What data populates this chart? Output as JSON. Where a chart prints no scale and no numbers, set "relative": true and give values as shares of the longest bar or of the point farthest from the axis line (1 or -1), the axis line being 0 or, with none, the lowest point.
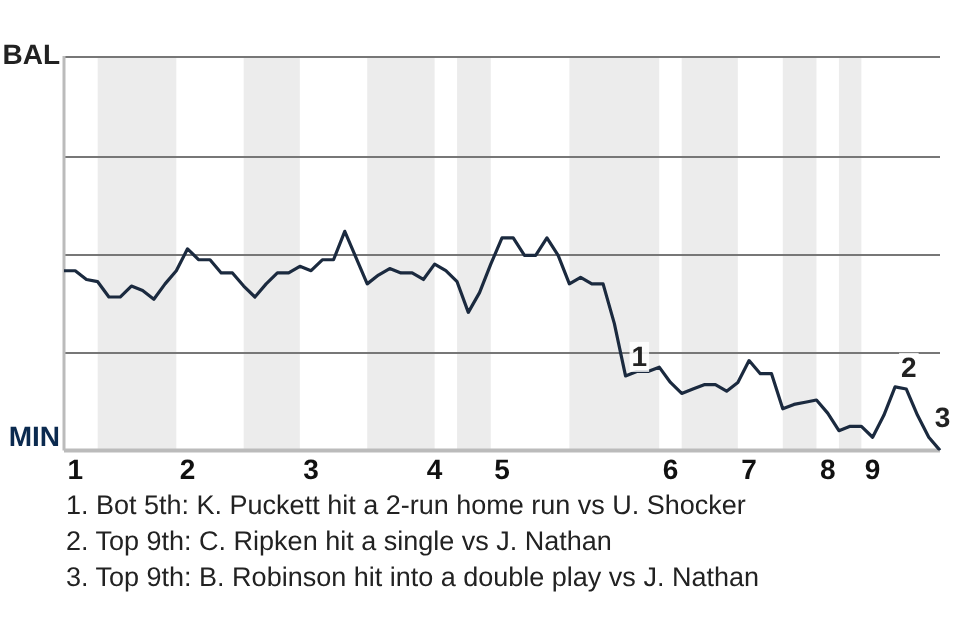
{
  "chart_data": {
    "type": "line",
    "relative": true,
    "categories": [
      null,
      "1",
      null,
      null,
      null,
      null,
      null,
      null,
      null,
      null,
      null,
      "2",
      null,
      null,
      null,
      null,
      null,
      null,
      null,
      null,
      null,
      null,
      "3",
      null,
      null,
      null,
      null,
      null,
      null,
      null,
      null,
      null,
      null,
      "4",
      null,
      null,
      null,
      null,
      null,
      "5",
      null,
      null,
      null,
      null,
      null,
      null,
      null,
      null,
      null,
      null,
      null,
      null,
      null,
      null,
      "6",
      null,
      null,
      null,
      null,
      null,
      null,
      "7",
      null,
      null,
      null,
      null,
      null,
      null,
      "8",
      null,
      null,
      null,
      "9",
      null,
      null,
      null,
      null,
      null,
      null
    ],
    "series": [
      {
        "color": "#1b2a3f",
        "values": [
          0.82,
          0.82,
          0.78,
          0.77,
          0.7,
          0.7,
          0.75,
          0.73,
          0.69,
          0.76,
          0.82,
          0.92,
          0.87,
          0.87,
          0.81,
          0.81,
          0.75,
          0.7,
          0.76,
          0.81,
          0.81,
          0.84,
          0.82,
          0.87,
          0.87,
          1,
          0.88,
          0.76,
          0.8,
          0.83,
          0.81,
          0.81,
          0.78,
          0.85,
          0.82,
          0.77,
          0.63,
          0.72,
          0.85,
          0.97,
          0.97,
          0.89,
          0.89,
          0.97,
          0.89,
          0.76,
          0.79,
          0.76,
          0.76,
          0.58,
          0.34,
          0.36,
          0.36,
          0.38,
          0.31,
          0.26,
          0.28,
          0.3,
          0.3,
          0.27,
          0.31,
          0.41,
          0.35,
          0.35,
          0.19,
          0.21,
          0.22,
          0.23,
          0.17,
          0.09,
          0.11,
          0.11,
          0.06,
          0.16,
          0.29,
          0.28,
          0.16,
          0.06,
          0
        ]
      }
    ],
    "legend": false,
    "marker": "none",
    "line_style": "solid",
    "ref_lines": [
      {
        "axis": "y",
        "value": 0.45,
        "color": "#777777"
      },
      {
        "axis": "y",
        "value": 0.9,
        "color": "#777777"
      },
      {
        "axis": "y",
        "value": 1.34,
        "color": "#777777"
      }
    ],
    "annotations": [
      {
        "text": "1",
        "y": 0.34
      },
      {
        "text": "2",
        "y": 0.29
      },
      {
        "text": "3",
        "y": 0.06
      },
      "BAL",
      "MIN",
      "1. Bot 5th: K. Puckett hit a 2-run home run vs U. Shocker",
      "2. Top 9th: C. Ripken hit a single vs J. Nathan",
      "3. Top 9th: B. Robinson hit into a double play vs J. Nathan"
    ]
  }
}
